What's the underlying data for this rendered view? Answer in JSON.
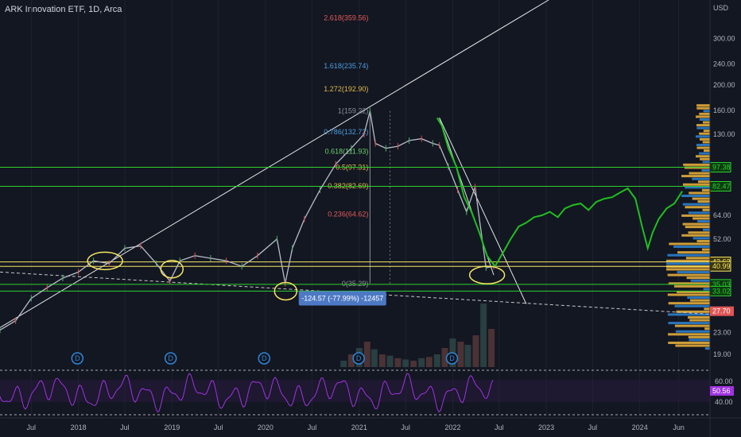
{
  "header": {
    "title": "ARK Innovation ETF, 1D, Arca"
  },
  "colors": {
    "background": "#131722",
    "price_historical": "#b8bcc8",
    "price_projection": "#1fbf1f",
    "fib_red": "#e05a5a",
    "fib_blue": "#4a9de0",
    "fib_gold": "#e0b84a",
    "fib_green": "#6ccf6c",
    "support_green": "#2ed12e",
    "support_yellow": "#f5e663",
    "rsi": "#a033e0",
    "volume_profile_blue": "#2f86d6",
    "volume_profile_gold": "#f0b53a",
    "circle_annotation": "#f5e663",
    "measure_box": "#4d79c4",
    "last_price_tag": "#e05656"
  },
  "fib_levels": [
    {
      "label": "2.618(359.56)",
      "value": 359.56,
      "color": "red"
    },
    {
      "label": "1.618(235.74)",
      "value": 235.74,
      "color": "blue"
    },
    {
      "label": "1.272(192.90)",
      "value": 192.9,
      "color": "gold"
    },
    {
      "label": "1(159.22)",
      "value": 159.22,
      "color": "grey"
    },
    {
      "label": "0.786(132.72)",
      "value": 132.72,
      "color": "blue"
    },
    {
      "label": "0.618(111.93)",
      "value": 111.93,
      "color": "green"
    },
    {
      "label": "0.5(97.31)",
      "value": 97.31,
      "color": "gold"
    },
    {
      "label": "0.382(82.69)",
      "value": 82.69,
      "color": "gold"
    },
    {
      "label": "0.236(64.62)",
      "value": 64.62,
      "color": "red"
    },
    {
      "label": "0(35.29)",
      "value": 35.29,
      "color": "grey"
    }
  ],
  "measure": {
    "text": "-124.57 (-77.99%) -12457"
  },
  "horizontal_lines": [
    {
      "value": 97.38,
      "color": "green",
      "tag": "97.38"
    },
    {
      "value": 82.47,
      "color": "green",
      "tag": "82.47"
    },
    {
      "value": 42.62,
      "color": "yellow",
      "tag": "42.62"
    },
    {
      "value": 40.99,
      "color": "yellow",
      "tag": "40.99"
    },
    {
      "value": 35.03,
      "color": "green",
      "tag": "35.03"
    },
    {
      "value": 33.02,
      "color": "green",
      "tag": "33.02"
    }
  ],
  "last_price": {
    "value": 27.7,
    "tag": "27.70"
  },
  "rsi_last": {
    "value": 50.56,
    "tag": "50.56"
  },
  "chart_data": {
    "type": "line",
    "symbol": "ARK Innovation ETF",
    "interval": "1D",
    "exchange": "Arca",
    "y_scale": "log",
    "y_unit": "USD",
    "y_ticks": [
      300.0,
      240.0,
      200.0,
      160.0,
      130.0,
      97.38,
      82.47,
      64.0,
      52.0,
      42.62,
      40.99,
      35.03,
      33.02,
      28.0,
      23.0,
      19.0
    ],
    "y_tick_labels": [
      "300.00",
      "240.00",
      "200.00",
      "160.00",
      "130.00",
      "97.38",
      "82.47",
      "64.00",
      "52.00",
      "42.62",
      "40.99",
      "35.03",
      "33.02",
      "28.00",
      "23.00",
      "19.00"
    ],
    "x_tick_labels": [
      "Jul",
      "2018",
      "Jul",
      "2019",
      "Jul",
      "2020",
      "Jul",
      "2021",
      "Jul",
      "2022",
      "Jul",
      "2023",
      "Jul",
      "2024",
      "Jun"
    ],
    "x_tick_dates": [
      "2017-07-01",
      "2018-01-01",
      "2018-07-01",
      "2019-01-01",
      "2019-07-01",
      "2020-01-01",
      "2020-07-01",
      "2021-01-01",
      "2021-07-01",
      "2022-01-01",
      "2022-07-01",
      "2023-01-01",
      "2023-07-01",
      "2024-01-01",
      "2024-06-01"
    ],
    "x_range": [
      "2017-03-01",
      "2024-10-01"
    ],
    "y_range": [
      17,
      420
    ],
    "series": [
      {
        "name": "",
        "kind": "historical",
        "x": [
          "2017-03-01",
          "2017-05-01",
          "2017-07-01",
          "2017-09-01",
          "2017-11-01",
          "2018-01-01",
          "2018-03-01",
          "2018-05-01",
          "2018-07-01",
          "2018-09-01",
          "2018-11-01",
          "2018-12-24",
          "2019-02-01",
          "2019-04-01",
          "2019-06-01",
          "2019-08-01",
          "2019-10-01",
          "2019-12-01",
          "2020-02-15",
          "2020-03-18",
          "2020-04-15",
          "2020-06-01",
          "2020-08-01",
          "2020-10-01",
          "2020-12-01",
          "2021-01-20",
          "2021-02-12",
          "2021-03-05",
          "2021-04-15",
          "2021-06-01",
          "2021-07-15",
          "2021-09-01",
          "2021-10-15",
          "2021-11-10",
          "2021-12-15",
          "2022-01-20",
          "2022-02-24",
          "2022-03-29",
          "2022-05-11",
          "2022-06-10"
        ],
        "y": [
          23.5,
          25.5,
          31,
          34,
          37,
          39,
          43,
          42,
          48,
          49,
          42,
          36,
          43,
          45,
          44,
          43,
          41,
          45,
          52,
          35.3,
          48,
          62,
          80,
          100,
          115,
          130,
          159.22,
          120,
          115,
          117,
          123,
          125,
          120,
          118,
          98,
          80,
          66,
          82,
          40.5,
          41
        ]
      },
      {
        "name": "",
        "kind": "projection",
        "x": [
          "2021-11-01",
          "2021-11-20",
          "2021-12-15",
          "2022-01-15",
          "2022-02-15",
          "2022-03-15",
          "2022-04-15",
          "2022-05-15",
          "2022-06-15",
          "2022-07-15",
          "2022-08-15",
          "2022-09-15",
          "2022-10-15",
          "2022-11-15",
          "2022-12-15",
          "2023-01-15",
          "2023-02-15",
          "2023-03-15",
          "2023-04-15",
          "2023-05-15",
          "2023-06-15",
          "2023-07-15",
          "2023-08-15",
          "2023-09-15",
          "2023-10-15",
          "2023-11-15",
          "2023-12-15",
          "2024-01-10",
          "2024-02-01",
          "2024-02-20",
          "2024-03-15",
          "2024-04-15",
          "2024-05-15",
          "2024-06-15"
        ],
        "y": [
          150,
          140,
          115,
          98,
          75,
          66,
          55,
          45,
          41,
          46,
          52,
          58,
          60,
          63,
          64,
          66,
          63,
          68,
          70,
          71,
          67,
          72,
          74,
          75,
          78,
          81,
          74,
          58,
          48,
          55,
          62,
          68,
          71,
          79
        ]
      }
    ],
    "volume_bars": {
      "x": [
        "2020-11-01",
        "2020-12-01",
        "2021-01-01",
        "2021-02-01",
        "2021-03-01",
        "2021-04-01",
        "2021-05-01",
        "2021-06-01",
        "2021-07-01",
        "2021-08-01",
        "2021-09-01",
        "2021-10-01",
        "2021-11-01",
        "2021-12-01",
        "2022-01-01",
        "2022-02-01",
        "2022-03-01",
        "2022-04-01",
        "2022-05-01",
        "2022-06-01"
      ],
      "height_pct": [
        10,
        20,
        30,
        40,
        28,
        20,
        18,
        14,
        12,
        10,
        14,
        16,
        20,
        30,
        45,
        40,
        35,
        50,
        100,
        60
      ]
    },
    "dividends": [
      "2017-12-28",
      "2018-12-27",
      "2019-12-27",
      "2020-12-30",
      "2021-12-29"
    ],
    "rsi": {
      "ticks": [
        60.0,
        40.0
      ],
      "last": 50.56
    },
    "annotations": {
      "circles": [
        "2018-04-15",
        "2019-01-01",
        "2020-03-20",
        "2022-05-15"
      ],
      "fib_anchor": [
        "2021-02-12",
        159.22,
        "2020-03-18",
        35.29
      ],
      "measure_text": "-124.57 (-77.99%) -12457"
    }
  }
}
